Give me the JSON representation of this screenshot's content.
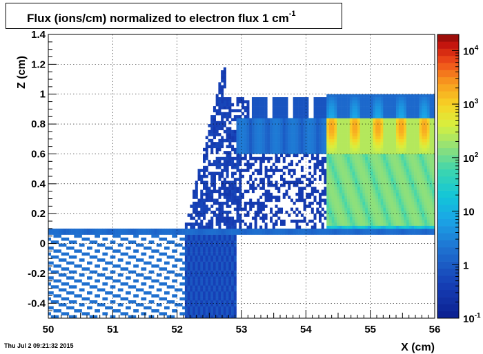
{
  "title_main": "Flux (ions/cm) normalized to electron flux 1 cm",
  "title_sup": "-1",
  "timestamp": "Thu Jul  2 09:21:32 2015",
  "chart_data": {
    "type": "heatmap",
    "title": "Flux (ions/cm) normalized to electron flux 1 cm^-1",
    "xlabel": "X (cm)",
    "ylabel": "Z (cm)",
    "xlim": [
      50,
      56
    ],
    "ylim": [
      -0.5,
      1.4
    ],
    "x_ticks": [
      50,
      51,
      52,
      53,
      54,
      55,
      56
    ],
    "y_ticks": [
      -0.4,
      -0.2,
      0,
      0.2,
      0.4,
      0.6,
      0.8,
      1,
      1.2,
      1.4
    ],
    "y_tick_labels": [
      "-0.4",
      "-0.2",
      "0",
      "0.2",
      "0.4",
      "0.6",
      "0.8",
      "1",
      "1.2",
      "1.4"
    ],
    "grid": true,
    "z_scale": "log",
    "zlim": [
      0.1,
      20000
    ],
    "colorbar_labels": [
      {
        "base": "10",
        "exp": "-1",
        "value": 0.1
      },
      {
        "base": "1",
        "exp": "",
        "value": 1
      },
      {
        "base": "10",
        "exp": "",
        "value": 10
      },
      {
        "base": "10",
        "exp": "2",
        "value": 100
      },
      {
        "base": "10",
        "exp": "3",
        "value": 1000
      },
      {
        "base": "10",
        "exp": "4",
        "value": 10000
      }
    ],
    "regions": [
      {
        "name": "drift-left",
        "x": [
          50.0,
          52.1
        ],
        "z": [
          -0.5,
          0.1
        ],
        "flux": 1.5
      },
      {
        "name": "drift-mid",
        "x": [
          52.1,
          52.9
        ],
        "z": [
          -0.5,
          0.1
        ],
        "flux": 0.6
      },
      {
        "name": "gap-band",
        "x": [
          50.0,
          56.0
        ],
        "z": [
          0.07,
          0.1
        ],
        "flux": 2
      },
      {
        "name": "plume",
        "x": [
          52.1,
          54.4
        ],
        "z": [
          0.1,
          1.0
        ],
        "flux": 0.4
      },
      {
        "name": "hot-core",
        "x": [
          54.3,
          56.0
        ],
        "z": [
          0.6,
          0.85
        ],
        "flux": 800
      },
      {
        "name": "hot-lower",
        "x": [
          54.3,
          56.0
        ],
        "z": [
          0.1,
          0.6
        ],
        "flux": 150
      },
      {
        "name": "hot-top",
        "x": [
          54.3,
          56.0
        ],
        "z": [
          0.85,
          1.0
        ],
        "flux": 3
      }
    ]
  }
}
